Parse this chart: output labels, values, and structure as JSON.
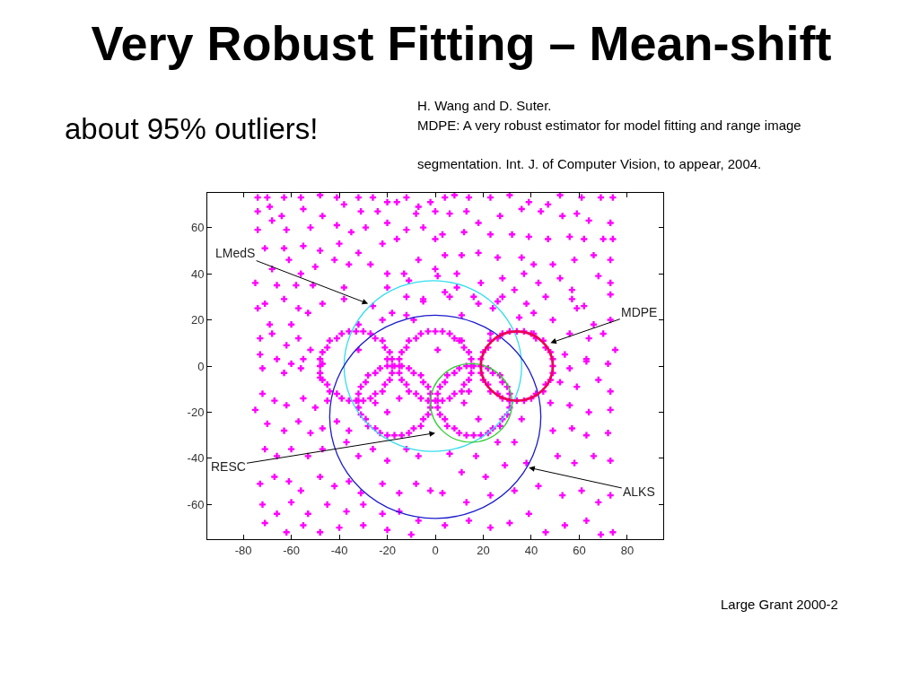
{
  "chart_data": {
    "type": "scatter",
    "title": "Very Robust Fitting – Mean-shift",
    "subtitle": "about 95% outliers!",
    "xlim": [
      -95,
      95
    ],
    "ylim": [
      -75,
      75
    ],
    "xticks": [
      -80,
      -60,
      -40,
      -20,
      0,
      20,
      40,
      60,
      80
    ],
    "yticks": [
      -60,
      -40,
      -20,
      0,
      20,
      40,
      60
    ],
    "annotations": [
      "H. Wang and D. Suter.\nMDPE: A very robust estimator for model fitting and range image\n\nsegmentation. Int. J. of Computer Vision, to appear, 2004.",
      "Large Grant 2000-2",
      {
        "text": "LMedS",
        "x": -28,
        "y": 27
      },
      {
        "text": "MDPE",
        "x": 48,
        "y": 10
      },
      "RESC",
      {
        "text": "ALKS",
        "x": 39,
        "y": -44
      }
    ],
    "series": [
      {
        "marker": "cross",
        "color": "#ff00ff",
        "x": [
          -74,
          -70,
          -63,
          -56,
          -48,
          -41,
          -32,
          -26,
          -20,
          -12,
          -7,
          -2,
          -74,
          -69,
          -64,
          -55,
          -47,
          -38,
          -31,
          -24,
          -16,
          -8,
          0,
          -74,
          -68,
          -62,
          -52,
          -41,
          -35,
          -29,
          -20,
          -12,
          -5,
          -71,
          -63,
          -55,
          -48,
          -40,
          -32,
          -22,
          -16,
          -7,
          0,
          -68,
          -61,
          -56,
          -50,
          -42,
          -36,
          -27,
          -20,
          -13,
          0,
          -75,
          -66,
          -58,
          -51,
          -38,
          -20,
          -11,
          -71,
          -63,
          -57,
          -47,
          -38,
          -26,
          -12,
          -5,
          -74,
          -69,
          -60,
          -53,
          -32,
          -22,
          -12,
          -73,
          -68,
          -62,
          -57,
          -52,
          -32,
          -20,
          -73,
          -66,
          -60,
          -55,
          -47,
          4,
          8,
          14,
          23,
          31,
          39,
          47,
          52,
          61,
          69,
          74,
          6,
          13,
          18,
          27,
          36,
          44,
          53,
          59,
          64,
          73,
          3,
          12,
          23,
          32,
          39,
          47,
          56,
          62,
          70,
          74,
          4,
          11,
          18,
          26,
          36,
          41,
          49,
          58,
          66,
          73,
          1,
          9,
          19,
          28,
          37,
          43,
          52,
          57,
          68,
          73,
          6,
          16,
          26,
          33,
          38,
          46,
          57,
          62,
          73,
          11,
          24,
          41,
          49,
          59,
          66,
          73,
          23,
          41,
          56,
          64,
          70,
          75,
          54,
          63,
          -72,
          -63,
          -56,
          -48,
          -72,
          -67,
          -62,
          -55,
          -50,
          -45,
          -75,
          -70,
          -63,
          -57,
          -52,
          -47,
          -41,
          -36,
          -71,
          -66,
          -60,
          -53,
          -47,
          -37,
          -32,
          -26,
          -20,
          -12,
          -7,
          -73,
          -67,
          -61,
          -56,
          -48,
          -42,
          -36,
          -31,
          -22,
          -15,
          -8,
          -2,
          -72,
          -66,
          -60,
          -53,
          -45,
          -37,
          -30,
          -22,
          -15,
          -7,
          -71,
          -62,
          -55,
          -48,
          -40,
          -30,
          -20,
          -10,
          -25,
          -20,
          -15,
          56,
          63,
          72,
          52,
          59,
          68,
          73,
          48,
          56,
          64,
          73,
          49,
          57,
          63,
          72,
          36,
          33,
          26,
          17,
          6,
          11,
          21,
          29,
          38,
          51,
          58,
          66,
          73,
          3,
          13,
          23,
          33,
          43,
          53,
          61,
          68,
          73,
          4,
          14,
          23,
          31,
          39,
          46,
          54,
          63,
          69,
          74,
          12,
          18,
          14,
          4,
          9,
          18,
          -5,
          -18,
          28,
          35,
          -9,
          10,
          1
        ],
        "values": [
          73,
          73,
          73,
          73,
          74,
          73,
          73,
          73,
          71,
          73,
          69,
          71,
          67,
          69,
          65,
          68,
          65,
          70,
          67,
          67,
          71,
          66,
          67,
          59,
          63,
          59,
          60,
          61,
          58,
          60,
          62,
          59,
          60,
          51,
          51,
          52,
          50,
          53,
          49,
          53,
          55,
          46,
          55,
          42,
          46,
          40,
          43,
          46,
          44,
          44,
          40,
          40,
          42,
          36,
          35,
          35,
          35,
          34,
          34,
          37,
          27,
          29,
          25,
          27,
          29,
          26,
          30,
          28,
          25,
          18,
          18,
          23,
          18,
          20,
          22,
          12,
          14,
          9,
          12,
          7,
          7,
          3,
          5,
          3,
          1,
          3,
          1,
          73,
          74,
          73,
          73,
          74,
          71,
          70,
          74,
          73,
          73,
          73,
          66,
          67,
          62,
          65,
          68,
          67,
          65,
          66,
          63,
          62,
          57,
          58,
          57,
          57,
          56,
          55,
          56,
          55,
          55,
          55,
          48,
          48,
          49,
          47,
          47,
          44,
          44,
          46,
          48,
          46,
          39,
          40,
          36,
          38,
          40,
          36,
          38,
          33,
          39,
          36,
          30,
          30,
          28,
          33,
          27,
          30,
          29,
          26,
          31,
          22,
          25,
          23,
          20,
          25,
          18,
          20,
          14,
          14,
          14,
          12,
          14,
          7,
          5,
          3,
          -1,
          -3,
          -1,
          -5,
          -12,
          -15,
          -17,
          -14,
          -18,
          -15,
          -19,
          -25,
          -28,
          -24,
          -29,
          -27,
          -24,
          -28,
          -36,
          -39,
          -36,
          -39,
          -36,
          -33,
          -39,
          -36,
          -41,
          -36,
          -39,
          -51,
          -48,
          -50,
          -54,
          -48,
          -52,
          -50,
          -55,
          -51,
          -55,
          -51,
          -54,
          -60,
          -64,
          -59,
          -64,
          -60,
          -63,
          -60,
          -64,
          -63,
          -67,
          -68,
          -72,
          -69,
          -72,
          -70,
          -69,
          -71,
          -73,
          -16,
          -20,
          -14,
          -1,
          2,
          1,
          -7,
          -9,
          -6,
          -11,
          -16,
          -17,
          -20,
          -19,
          -28,
          -27,
          -30,
          -29,
          -23,
          -33,
          -33,
          -39,
          -38,
          -46,
          -48,
          -43,
          -42,
          -39,
          -42,
          -39,
          -41,
          -55,
          -59,
          -56,
          -54,
          -52,
          -56,
          -54,
          -59,
          -56,
          -69,
          -67,
          -70,
          -68,
          -64,
          -72,
          -69,
          -67,
          -73,
          -72,
          -16,
          -23,
          -11,
          32,
          34,
          27,
          29,
          23,
          30,
          21,
          20,
          11,
          7
        ]
      },
      {
        "marker": "cross",
        "color": "#ff00ff",
        "x": [
          -18,
          -18,
          -19,
          -21,
          -22,
          -25,
          -27,
          -30,
          -33,
          -36,
          -39,
          -41,
          -44,
          -45,
          -47,
          -48,
          -48,
          -48,
          -47,
          -45,
          -44,
          -41,
          -39,
          -36,
          -33,
          -30,
          -27,
          -25,
          -22,
          -21,
          -19,
          -18,
          15,
          15,
          14,
          12,
          11,
          8,
          6,
          3,
          0,
          -3,
          -6,
          -8,
          -11,
          -12,
          -14,
          -15,
          -15,
          -15,
          -14,
          -12,
          -11,
          -8,
          -6,
          -3,
          0,
          3,
          6,
          8,
          11,
          12,
          14,
          15,
          49,
          49,
          48,
          46,
          45,
          42,
          40,
          37,
          34,
          31,
          28,
          26,
          23,
          22,
          20,
          19,
          19,
          19,
          20,
          22,
          23,
          26,
          28,
          31,
          34,
          37,
          40,
          42,
          45,
          46,
          48,
          49,
          -2,
          -2,
          -3,
          -5,
          -6,
          -9,
          -11,
          -14,
          -17,
          -20,
          -23,
          -25,
          -28,
          -29,
          -31,
          -32,
          -32,
          -32,
          -31,
          -29,
          -28,
          -25,
          -23,
          -20,
          -17,
          -14,
          -11,
          -9,
          -6,
          -5,
          -3,
          -2,
          31,
          31,
          30,
          28,
          27,
          24,
          22,
          19,
          16,
          13,
          10,
          8,
          5,
          4,
          2,
          1,
          1,
          1,
          2,
          4,
          5,
          8,
          10,
          13,
          16,
          19,
          22,
          24,
          27,
          28,
          30,
          31
        ],
        "values": [
          0,
          3,
          6,
          8,
          11,
          12,
          14,
          15,
          15,
          15,
          14,
          12,
          11,
          8,
          6,
          3,
          0,
          -3,
          -6,
          -8,
          -11,
          -12,
          -14,
          -15,
          -15,
          -15,
          -14,
          -12,
          -11,
          -8,
          -6,
          -3,
          0,
          3,
          6,
          8,
          11,
          12,
          14,
          15,
          15,
          15,
          14,
          12,
          11,
          8,
          6,
          3,
          0,
          -3,
          -6,
          -8,
          -11,
          -12,
          -14,
          -15,
          -15,
          -15,
          -14,
          -12,
          -11,
          -8,
          -6,
          -3,
          0,
          3,
          6,
          8,
          11,
          12,
          14,
          15,
          15,
          15,
          14,
          12,
          11,
          8,
          6,
          3,
          0,
          -3,
          -6,
          -8,
          -11,
          -12,
          -14,
          -15,
          -15,
          -15,
          -14,
          -12,
          -11,
          -8,
          -6,
          -3,
          -15,
          -12,
          -9,
          -7,
          -4,
          -3,
          -1,
          0,
          0,
          0,
          -1,
          -3,
          -4,
          -7,
          -9,
          -12,
          -15,
          -18,
          -21,
          -23,
          -26,
          -27,
          -29,
          -30,
          -30,
          -30,
          -29,
          -27,
          -26,
          -23,
          -21,
          -18,
          -15,
          -12,
          -9,
          -7,
          -4,
          -3,
          -1,
          0,
          0,
          0,
          -1,
          -3,
          -4,
          -7,
          -9,
          -12,
          -15,
          -18,
          -21,
          -23,
          -26,
          -27,
          -29,
          -30,
          -30,
          -30,
          -29,
          -27,
          -26,
          -23,
          -21,
          -18
        ]
      }
    ]
  }
}
